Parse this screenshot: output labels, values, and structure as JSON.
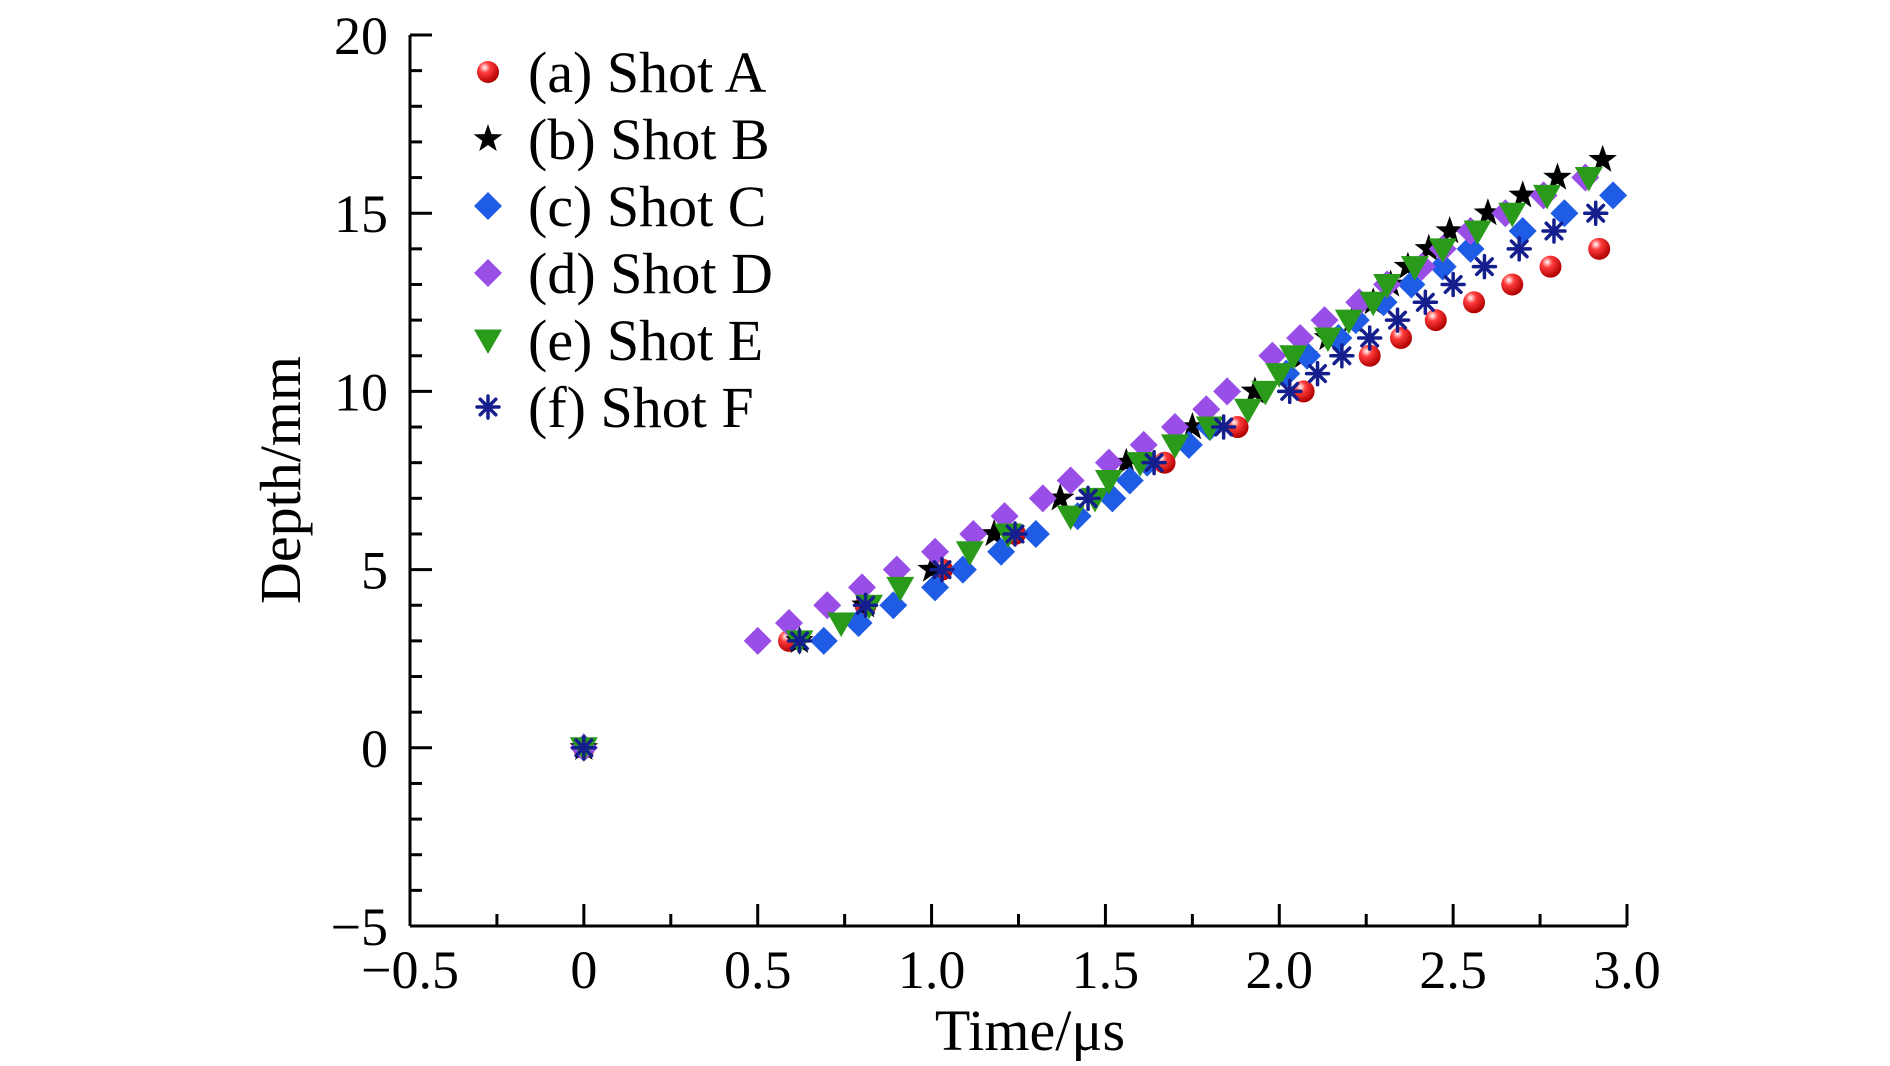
{
  "chart_data": {
    "type": "scatter",
    "xlabel": "Time/μs",
    "ylabel": "Depth/mm",
    "xlim": [
      -0.5,
      3.0
    ],
    "ylim": [
      -5,
      20
    ],
    "xticks": [
      -0.5,
      0,
      0.5,
      1.0,
      1.5,
      2.0,
      2.5,
      3.0
    ],
    "xtick_labels": [
      "−0.5",
      "0",
      "0.5",
      "1.0",
      "1.5",
      "2.0",
      "2.5",
      "3.0"
    ],
    "yticks": [
      -5,
      0,
      5,
      10,
      15,
      20
    ],
    "ytick_labels": [
      "−5",
      "0",
      "5",
      "10",
      "15",
      "20"
    ],
    "grid": false,
    "legend_position": "top-left",
    "series": [
      {
        "name": "(a) Shot A",
        "marker": "sphere",
        "color": "#e8191f",
        "points": [
          [
            0,
            0
          ],
          [
            0.59,
            3.0
          ],
          [
            0.81,
            4.0
          ],
          [
            1.03,
            5.0
          ],
          [
            1.24,
            6.0
          ],
          [
            1.67,
            8.0
          ],
          [
            1.88,
            9.0
          ],
          [
            2.07,
            10.0
          ],
          [
            2.26,
            11.0
          ],
          [
            2.35,
            11.5
          ],
          [
            2.45,
            12.0
          ],
          [
            2.56,
            12.5
          ],
          [
            2.67,
            13.0
          ],
          [
            2.78,
            13.5
          ],
          [
            2.92,
            14.0
          ]
        ]
      },
      {
        "name": "(b) Shot B",
        "marker": "star",
        "color": "#000000",
        "points": [
          [
            0,
            0
          ],
          [
            0.62,
            3.0
          ],
          [
            0.81,
            4.0
          ],
          [
            1.0,
            5.0
          ],
          [
            1.18,
            6.0
          ],
          [
            1.37,
            7.0
          ],
          [
            1.56,
            8.0
          ],
          [
            1.75,
            9.0
          ],
          [
            1.93,
            10.0
          ],
          [
            2.07,
            11.0
          ],
          [
            2.14,
            11.5
          ],
          [
            2.21,
            12.0
          ],
          [
            2.27,
            12.5
          ],
          [
            2.32,
            13.0
          ],
          [
            2.37,
            13.5
          ],
          [
            2.43,
            14.0
          ],
          [
            2.49,
            14.5
          ],
          [
            2.6,
            15.0
          ],
          [
            2.7,
            15.5
          ],
          [
            2.8,
            16.0
          ],
          [
            2.93,
            16.5
          ]
        ]
      },
      {
        "name": "(c) Shot C",
        "marker": "diamond",
        "color": "#1e5ce6",
        "points": [
          [
            0,
            0
          ],
          [
            0.69,
            3.0
          ],
          [
            0.79,
            3.5
          ],
          [
            0.89,
            4.0
          ],
          [
            1.01,
            4.5
          ],
          [
            1.09,
            5.0
          ],
          [
            1.2,
            5.5
          ],
          [
            1.3,
            6.0
          ],
          [
            1.42,
            6.5
          ],
          [
            1.52,
            7.0
          ],
          [
            1.57,
            7.5
          ],
          [
            1.62,
            8.0
          ],
          [
            1.74,
            8.5
          ],
          [
            1.8,
            9.0
          ],
          [
            2.02,
            10.5
          ],
          [
            2.08,
            11.0
          ],
          [
            2.17,
            11.5
          ],
          [
            2.22,
            12.0
          ],
          [
            2.3,
            12.5
          ],
          [
            2.38,
            13.0
          ],
          [
            2.47,
            13.5
          ],
          [
            2.55,
            14.0
          ],
          [
            2.7,
            14.5
          ],
          [
            2.82,
            15.0
          ],
          [
            2.96,
            15.5
          ]
        ]
      },
      {
        "name": "(d) Shot D",
        "marker": "diamond",
        "color": "#9a4ee8",
        "points": [
          [
            0,
            0
          ],
          [
            0.5,
            3.0
          ],
          [
            0.59,
            3.5
          ],
          [
            0.7,
            4.0
          ],
          [
            0.8,
            4.5
          ],
          [
            0.9,
            5.0
          ],
          [
            1.01,
            5.5
          ],
          [
            1.12,
            6.0
          ],
          [
            1.21,
            6.5
          ],
          [
            1.32,
            7.0
          ],
          [
            1.4,
            7.5
          ],
          [
            1.51,
            8.0
          ],
          [
            1.61,
            8.5
          ],
          [
            1.7,
            9.0
          ],
          [
            1.79,
            9.5
          ],
          [
            1.85,
            10.0
          ],
          [
            1.98,
            11.0
          ],
          [
            2.06,
            11.5
          ],
          [
            2.13,
            12.0
          ],
          [
            2.23,
            12.5
          ],
          [
            2.31,
            13.0
          ],
          [
            2.41,
            13.5
          ],
          [
            2.47,
            14.0
          ],
          [
            2.55,
            14.5
          ],
          [
            2.65,
            15.0
          ],
          [
            2.76,
            15.5
          ],
          [
            2.88,
            16.0
          ]
        ]
      },
      {
        "name": "(e) Shot E",
        "marker": "triangle-down",
        "color": "#2a9a1a",
        "points": [
          [
            0,
            0
          ],
          [
            0.62,
            3.0
          ],
          [
            0.74,
            3.5
          ],
          [
            0.82,
            4.0
          ],
          [
            0.91,
            4.5
          ],
          [
            1.11,
            5.5
          ],
          [
            1.22,
            6.0
          ],
          [
            1.4,
            6.5
          ],
          [
            1.47,
            7.0
          ],
          [
            1.51,
            7.5
          ],
          [
            1.6,
            8.0
          ],
          [
            1.7,
            8.5
          ],
          [
            1.8,
            9.0
          ],
          [
            1.91,
            9.5
          ],
          [
            1.96,
            10.0
          ],
          [
            2.0,
            10.5
          ],
          [
            2.04,
            11.0
          ],
          [
            2.14,
            11.5
          ],
          [
            2.2,
            12.0
          ],
          [
            2.27,
            12.5
          ],
          [
            2.31,
            13.0
          ],
          [
            2.39,
            13.5
          ],
          [
            2.47,
            14.0
          ],
          [
            2.57,
            14.5
          ],
          [
            2.67,
            15.0
          ],
          [
            2.77,
            15.5
          ],
          [
            2.89,
            16.0
          ]
        ]
      },
      {
        "name": "(f) Shot F",
        "marker": "asterisk",
        "color": "#141e8c",
        "points": [
          [
            0,
            0
          ],
          [
            0.62,
            3.0
          ],
          [
            0.81,
            4.0
          ],
          [
            1.03,
            5.0
          ],
          [
            1.24,
            6.0
          ],
          [
            1.45,
            7.0
          ],
          [
            1.64,
            8.0
          ],
          [
            1.84,
            9.0
          ],
          [
            2.03,
            10.0
          ],
          [
            2.11,
            10.5
          ],
          [
            2.18,
            11.0
          ],
          [
            2.26,
            11.5
          ],
          [
            2.34,
            12.0
          ],
          [
            2.42,
            12.5
          ],
          [
            2.5,
            13.0
          ],
          [
            2.59,
            13.5
          ],
          [
            2.69,
            14.0
          ],
          [
            2.79,
            14.5
          ],
          [
            2.91,
            15.0
          ]
        ]
      }
    ]
  }
}
